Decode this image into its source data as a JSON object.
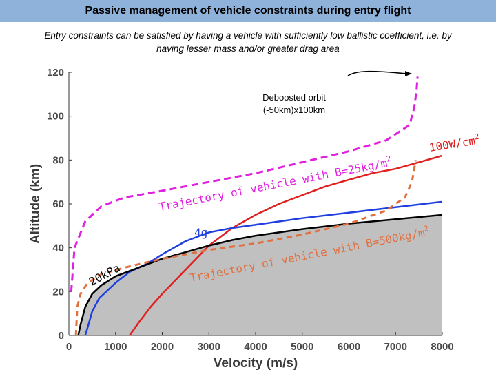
{
  "slide": {
    "title": "Passive management of vehicle constraints during entry flight",
    "subtitle_line1": "Entry constraints can be satisfied by having a vehicle with sufficiently low ballistic coefficient, i.e. by",
    "subtitle_line2": "having lesser mass and/or greater drag area"
  },
  "colors": {
    "title_bar": "#8fb2da",
    "shaded_region": "#c0c0c0",
    "heat_flux": "#e02020",
    "g_load": "#1f3fe0",
    "pressure": "#000000",
    "traj_low_b": "#e020e0",
    "traj_high_b": "#e07040"
  },
  "chart_data": {
    "type": "line",
    "xlabel": "Velocity (m/s)",
    "ylabel": "Altitude (km)",
    "xlim": [
      0,
      8000
    ],
    "ylim": [
      0,
      120
    ],
    "xticks": [
      "0",
      "1000",
      "2000",
      "3000",
      "4000",
      "5000",
      "6000",
      "7000",
      "8000"
    ],
    "yticks": [
      "0",
      "20",
      "40",
      "60",
      "80",
      "100",
      "120"
    ],
    "grid": false,
    "annotations": {
      "deboost": [
        "Deboosted orbit",
        "(-50km)x100km"
      ],
      "heat": "100W/cm",
      "heat_sup": "2",
      "traj_low": "Trajectory of vehicle with B=25kg/m",
      "traj_low_sup": "2",
      "traj_high": "Trajectory of vehicle with B=500kg/m",
      "traj_high_sup": "2",
      "gload": "4g",
      "pressure": "20kPa"
    },
    "series": [
      {
        "key": "heat_flux",
        "style": "solid",
        "x": [
          1300,
          1500,
          1750,
          2000,
          2500,
          3000,
          3500,
          4000,
          4500,
          5000,
          5500,
          6000,
          6500,
          7000,
          7500,
          8000
        ],
        "y": [
          0,
          6,
          13,
          19,
          30,
          41,
          49,
          55,
          60,
          64,
          68,
          71,
          74,
          76,
          79,
          82
        ]
      },
      {
        "key": "g_load",
        "style": "solid",
        "x": [
          350,
          420,
          500,
          650,
          800,
          1000,
          1300,
          1700,
          2000,
          2500,
          3000,
          3500,
          4000,
          4500,
          5000,
          6000,
          7000,
          8000
        ],
        "y": [
          0,
          5,
          11,
          17,
          20,
          24,
          29,
          33,
          37,
          43,
          47,
          49,
          50.5,
          52,
          53.5,
          56,
          58.5,
          61
        ]
      },
      {
        "key": "pressure",
        "style": "solid",
        "x": [
          200,
          250,
          350,
          500,
          700,
          1000,
          1500,
          2000,
          2500,
          3000,
          3500,
          4000,
          5000,
          6000,
          7000,
          8000
        ],
        "y": [
          0,
          5,
          13,
          19,
          23,
          27,
          31,
          35,
          38,
          41,
          43.5,
          45.5,
          48.5,
          51,
          53,
          55
        ]
      },
      {
        "key": "traj_low_b",
        "style": "dashed",
        "x": [
          50,
          120,
          350,
          700,
          1200,
          2000,
          3000,
          4000,
          5000,
          6000,
          6800,
          7300,
          7400,
          7450,
          7470
        ],
        "y": [
          20,
          40,
          52,
          59,
          63,
          66,
          70,
          74,
          79,
          84,
          89,
          96,
          104,
          112,
          118
        ]
      },
      {
        "key": "traj_high_b",
        "style": "dashed",
        "x": [
          150,
          180,
          250,
          400,
          700,
          1200,
          2000,
          3000,
          4000,
          5000,
          6000,
          6800,
          7200,
          7350,
          7400,
          7430
        ],
        "y": [
          0,
          13,
          19,
          24,
          28,
          31,
          35,
          39,
          42,
          46,
          51,
          57,
          63,
          70,
          76,
          80
        ]
      }
    ]
  }
}
